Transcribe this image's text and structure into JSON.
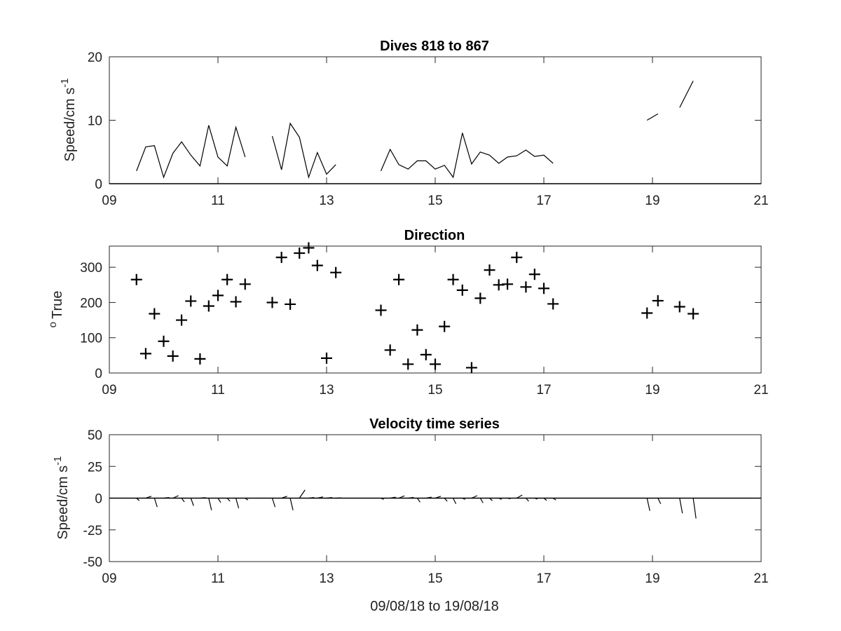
{
  "chart_data": [
    {
      "type": "line",
      "title": "Dives 818 to 867",
      "ylabel": "Speed/cm s",
      "ylabel_exponent": "-1",
      "xlim": [
        9,
        21
      ],
      "ylim": [
        0,
        20
      ],
      "xticks": [
        9,
        11,
        13,
        15,
        17,
        19,
        21
      ],
      "xtick_labels": [
        "09",
        "11",
        "13",
        "15",
        "17",
        "19",
        "21"
      ],
      "yticks": [
        0,
        10,
        20
      ],
      "ytick_labels": [
        "0",
        "10",
        "20"
      ],
      "segments": [
        [
          [
            9.5,
            2.0
          ],
          [
            9.67,
            5.8
          ],
          [
            9.83,
            6.0
          ],
          [
            10.0,
            1.0
          ],
          [
            10.17,
            4.8
          ],
          [
            10.33,
            6.6
          ],
          [
            10.5,
            4.5
          ],
          [
            10.67,
            2.8
          ],
          [
            10.83,
            9.2
          ],
          [
            11.0,
            4.2
          ],
          [
            11.17,
            2.8
          ],
          [
            11.33,
            8.9
          ],
          [
            11.5,
            4.2
          ]
        ],
        [
          [
            12.0,
            7.5
          ],
          [
            12.17,
            2.2
          ],
          [
            12.33,
            9.5
          ],
          [
            12.5,
            7.3
          ],
          [
            12.67,
            1.0
          ],
          [
            12.83,
            4.9
          ],
          [
            13.0,
            1.5
          ],
          [
            13.17,
            3.0
          ]
        ],
        [
          [
            14.0,
            2.0
          ],
          [
            14.17,
            5.4
          ],
          [
            14.33,
            3.0
          ],
          [
            14.5,
            2.3
          ],
          [
            14.67,
            3.6
          ],
          [
            14.83,
            3.6
          ],
          [
            15.0,
            2.3
          ],
          [
            15.17,
            2.9
          ],
          [
            15.33,
            1.0
          ],
          [
            15.5,
            8.0
          ],
          [
            15.67,
            3.1
          ],
          [
            15.83,
            5.0
          ],
          [
            16.0,
            4.5
          ],
          [
            16.17,
            3.2
          ],
          [
            16.33,
            4.2
          ],
          [
            16.5,
            4.4
          ],
          [
            16.67,
            5.3
          ],
          [
            16.83,
            4.3
          ],
          [
            17.0,
            4.5
          ],
          [
            17.17,
            3.2
          ]
        ],
        [
          [
            18.9,
            10.0
          ],
          [
            19.1,
            11.0
          ]
        ],
        [
          [
            19.5,
            12.0
          ],
          [
            19.75,
            16.2
          ]
        ]
      ],
      "zero_line": true
    },
    {
      "type": "scatter",
      "title": "Direction",
      "ylabel": "True",
      "ylabel_prefix": "o",
      "xlim": [
        9,
        21
      ],
      "ylim": [
        0,
        360
      ],
      "xticks": [
        9,
        11,
        13,
        15,
        17,
        19,
        21
      ],
      "xtick_labels": [
        "09",
        "11",
        "13",
        "15",
        "17",
        "19",
        "21"
      ],
      "yticks": [
        0,
        100,
        200,
        300
      ],
      "ytick_labels": [
        "0",
        "100",
        "200",
        "300"
      ],
      "marker": "+",
      "points": [
        [
          9.5,
          265
        ],
        [
          9.67,
          55
        ],
        [
          9.83,
          168
        ],
        [
          10.0,
          90
        ],
        [
          10.17,
          48
        ],
        [
          10.33,
          150
        ],
        [
          10.5,
          204
        ],
        [
          10.67,
          40
        ],
        [
          10.83,
          190
        ],
        [
          11.0,
          220
        ],
        [
          11.17,
          265
        ],
        [
          11.33,
          202
        ],
        [
          11.5,
          252
        ],
        [
          12.0,
          200
        ],
        [
          12.17,
          328
        ],
        [
          12.33,
          195
        ],
        [
          12.5,
          340
        ],
        [
          12.67,
          355
        ],
        [
          12.83,
          305
        ],
        [
          13.0,
          42
        ],
        [
          13.17,
          285
        ],
        [
          14.0,
          178
        ],
        [
          14.17,
          65
        ],
        [
          14.33,
          265
        ],
        [
          14.5,
          25
        ],
        [
          14.67,
          122
        ],
        [
          14.83,
          52
        ],
        [
          15.0,
          25
        ],
        [
          15.17,
          132
        ],
        [
          15.33,
          265
        ],
        [
          15.5,
          235
        ],
        [
          15.67,
          15
        ],
        [
          15.83,
          212
        ],
        [
          16.0,
          292
        ],
        [
          16.17,
          250
        ],
        [
          16.33,
          252
        ],
        [
          16.5,
          328
        ],
        [
          16.67,
          244
        ],
        [
          16.83,
          280
        ],
        [
          17.0,
          240
        ],
        [
          17.17,
          196
        ],
        [
          18.9,
          170
        ],
        [
          19.1,
          205
        ],
        [
          19.5,
          188
        ],
        [
          19.75,
          168
        ]
      ]
    },
    {
      "type": "quiver",
      "title": "Velocity time series",
      "ylabel": "Speed/cm s",
      "ylabel_exponent": "-1",
      "xlabel": "09/08/18 to 19/08/18",
      "xlim": [
        9,
        21
      ],
      "ylim": [
        -50,
        50
      ],
      "xticks": [
        9,
        11,
        13,
        15,
        17,
        19,
        21
      ],
      "xtick_labels": [
        "09",
        "11",
        "13",
        "15",
        "17",
        "19",
        "21"
      ],
      "yticks": [
        -50,
        -25,
        0,
        25,
        50
      ],
      "ytick_labels": [
        "-50",
        "-25",
        "0",
        "25",
        "50"
      ],
      "zero_line": true,
      "vectors": [
        [
          9.5,
          -2.0
        ],
        [
          9.67,
          1.5
        ],
        [
          9.83,
          -7.0
        ],
        [
          10.0,
          0.5
        ],
        [
          10.17,
          2.0
        ],
        [
          10.33,
          -3.0
        ],
        [
          10.5,
          -6.0
        ],
        [
          10.67,
          0.4
        ],
        [
          10.83,
          -9.5
        ],
        [
          11.0,
          -3.5
        ],
        [
          11.17,
          -2.5
        ],
        [
          11.33,
          -8.0
        ],
        [
          11.5,
          -1.5
        ],
        [
          12.0,
          -7.0
        ],
        [
          12.17,
          1.5
        ],
        [
          12.33,
          -9.5
        ],
        [
          12.5,
          6.5
        ],
        [
          12.67,
          0.5
        ],
        [
          12.83,
          1.0
        ],
        [
          13.0,
          0.5
        ],
        [
          13.17,
          0.2
        ],
        [
          14.0,
          -1.0
        ],
        [
          14.17,
          0.8
        ],
        [
          14.33,
          1.8
        ],
        [
          14.5,
          0.6
        ],
        [
          14.67,
          -3.2
        ],
        [
          14.83,
          0.8
        ],
        [
          15.0,
          1.5
        ],
        [
          15.17,
          -2.5
        ],
        [
          15.33,
          -4.5
        ],
        [
          15.5,
          -1.0
        ],
        [
          15.67,
          2.0
        ],
        [
          15.83,
          -3.8
        ],
        [
          16.0,
          -2.0
        ],
        [
          16.17,
          -1.0
        ],
        [
          16.33,
          -0.5
        ],
        [
          16.5,
          2.5
        ],
        [
          16.67,
          -2.5
        ],
        [
          16.83,
          -0.8
        ],
        [
          17.0,
          -1.8
        ],
        [
          17.17,
          -1.5
        ],
        [
          18.9,
          -10.0
        ],
        [
          19.1,
          -4.5
        ],
        [
          19.5,
          -12.0
        ],
        [
          19.75,
          -16.0
        ]
      ]
    }
  ]
}
